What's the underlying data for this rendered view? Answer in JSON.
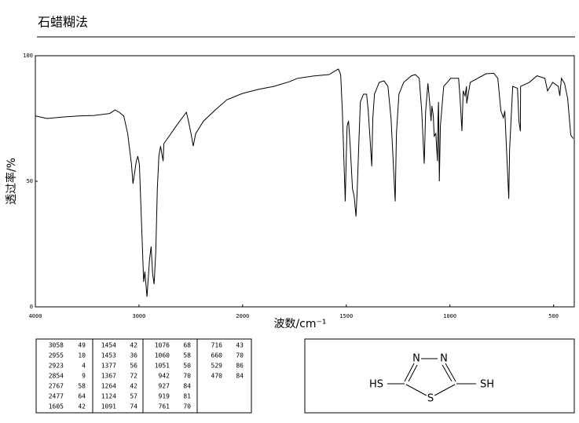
{
  "title": "石蜡糊法",
  "chart_data": {
    "type": "line",
    "xlabel": "波数/cm⁻¹",
    "ylabel": "透过率/%",
    "xlim": [
      4000,
      400
    ],
    "xticks": [
      4000,
      3000,
      2000,
      1500,
      1000,
      500
    ],
    "x_scale_change_at": 2000,
    "x_scale_factor_below_change": 2,
    "ylim": [
      0,
      100
    ],
    "yticks": [
      0,
      50,
      100
    ],
    "color": "#000000",
    "x": [
      4000,
      3887,
      3736,
      3585,
      3434,
      3283,
      3230,
      3192,
      3147,
      3109,
      3072,
      3058,
      3026,
      3011,
      2996,
      2974,
      2955,
      2943,
      2923,
      2913,
      2898,
      2883,
      2868,
      2854,
      2838,
      2823,
      2808,
      2792,
      2767,
      2760,
      2717,
      2641,
      2543,
      2528,
      2498,
      2477,
      2453,
      2377,
      2264,
      2151,
      2000,
      1924,
      1848,
      1773,
      1735,
      1659,
      1583,
      1553,
      1538,
      1527,
      1519,
      1505,
      1500,
      1496,
      1489,
      1481,
      1470,
      1462,
      1453,
      1447,
      1439,
      1432,
      1417,
      1402,
      1394,
      1377,
      1372,
      1364,
      1341,
      1318,
      1299,
      1284,
      1264,
      1258,
      1246,
      1223,
      1186,
      1167,
      1148,
      1136,
      1124,
      1117,
      1106,
      1098,
      1091,
      1087,
      1080,
      1076,
      1068,
      1060,
      1058,
      1055,
      1051,
      1046,
      1030,
      996,
      958,
      951,
      942,
      936,
      927,
      920,
      919,
      902,
      826,
      788,
      769,
      754,
      742,
      735,
      727,
      716,
      712,
      697,
      674,
      667,
      660,
      659,
      617,
      580,
      542,
      529,
      504,
      477,
      470,
      462,
      447,
      432,
      417,
      405
    ],
    "values": [
      76,
      75,
      75.6,
      76,
      76.2,
      77,
      78.4,
      77.5,
      76,
      69,
      56.6,
      49,
      58,
      60,
      56.6,
      31.6,
      10,
      14,
      4,
      10,
      19,
      24,
      13,
      9,
      22,
      47,
      60,
      64,
      58,
      65,
      67.5,
      72,
      77.5,
      75,
      69,
      64,
      69,
      74,
      78.4,
      82.5,
      85,
      86.6,
      87.8,
      89.7,
      91,
      91.9,
      92.5,
      94,
      94.7,
      92.5,
      78,
      42,
      60,
      72,
      74,
      64,
      47,
      44,
      36,
      47,
      66,
      81.6,
      84.7,
      84.7,
      78,
      56,
      75,
      84.7,
      89.4,
      90,
      87.8,
      75,
      42,
      69,
      84.7,
      89.4,
      92,
      92.5,
      91,
      78,
      57,
      78,
      89,
      81.6,
      74,
      80,
      76,
      68,
      69,
      58,
      73.8,
      81.6,
      50,
      72,
      87.8,
      91,
      91,
      83,
      70,
      86,
      84,
      87.8,
      81,
      89.4,
      92.8,
      93,
      91,
      78,
      75.3,
      78,
      62.8,
      43,
      62.8,
      87.8,
      87,
      73.8,
      70,
      87.8,
      89.4,
      92,
      91,
      86,
      89.4,
      87.8,
      84,
      91,
      89,
      83,
      68.4,
      67
    ]
  },
  "peak_table": [
    [
      [
        "3058",
        "49"
      ],
      [
        "2955",
        "10"
      ],
      [
        "2923",
        "4"
      ],
      [
        "2854",
        "9"
      ],
      [
        "2767",
        "58"
      ],
      [
        "2477",
        "64"
      ],
      [
        "1605",
        "42"
      ]
    ],
    [
      [
        "1454",
        "42"
      ],
      [
        "1453",
        "36"
      ],
      [
        "1377",
        "56"
      ],
      [
        "1367",
        "72"
      ],
      [
        "1264",
        "42"
      ],
      [
        "1124",
        "57"
      ],
      [
        "1091",
        "74"
      ]
    ],
    [
      [
        "1076",
        "68"
      ],
      [
        "1060",
        "58"
      ],
      [
        "1051",
        "50"
      ],
      [
        "942",
        "70"
      ],
      [
        "927",
        "84"
      ],
      [
        "919",
        "81"
      ],
      [
        "761",
        "70"
      ]
    ],
    [
      [
        "716",
        "43"
      ],
      [
        "660",
        "70"
      ],
      [
        "529",
        "86"
      ],
      [
        "470",
        "84"
      ]
    ]
  ],
  "structure": {
    "atoms": [
      "N",
      "N",
      "HS",
      "SH",
      "S"
    ]
  }
}
